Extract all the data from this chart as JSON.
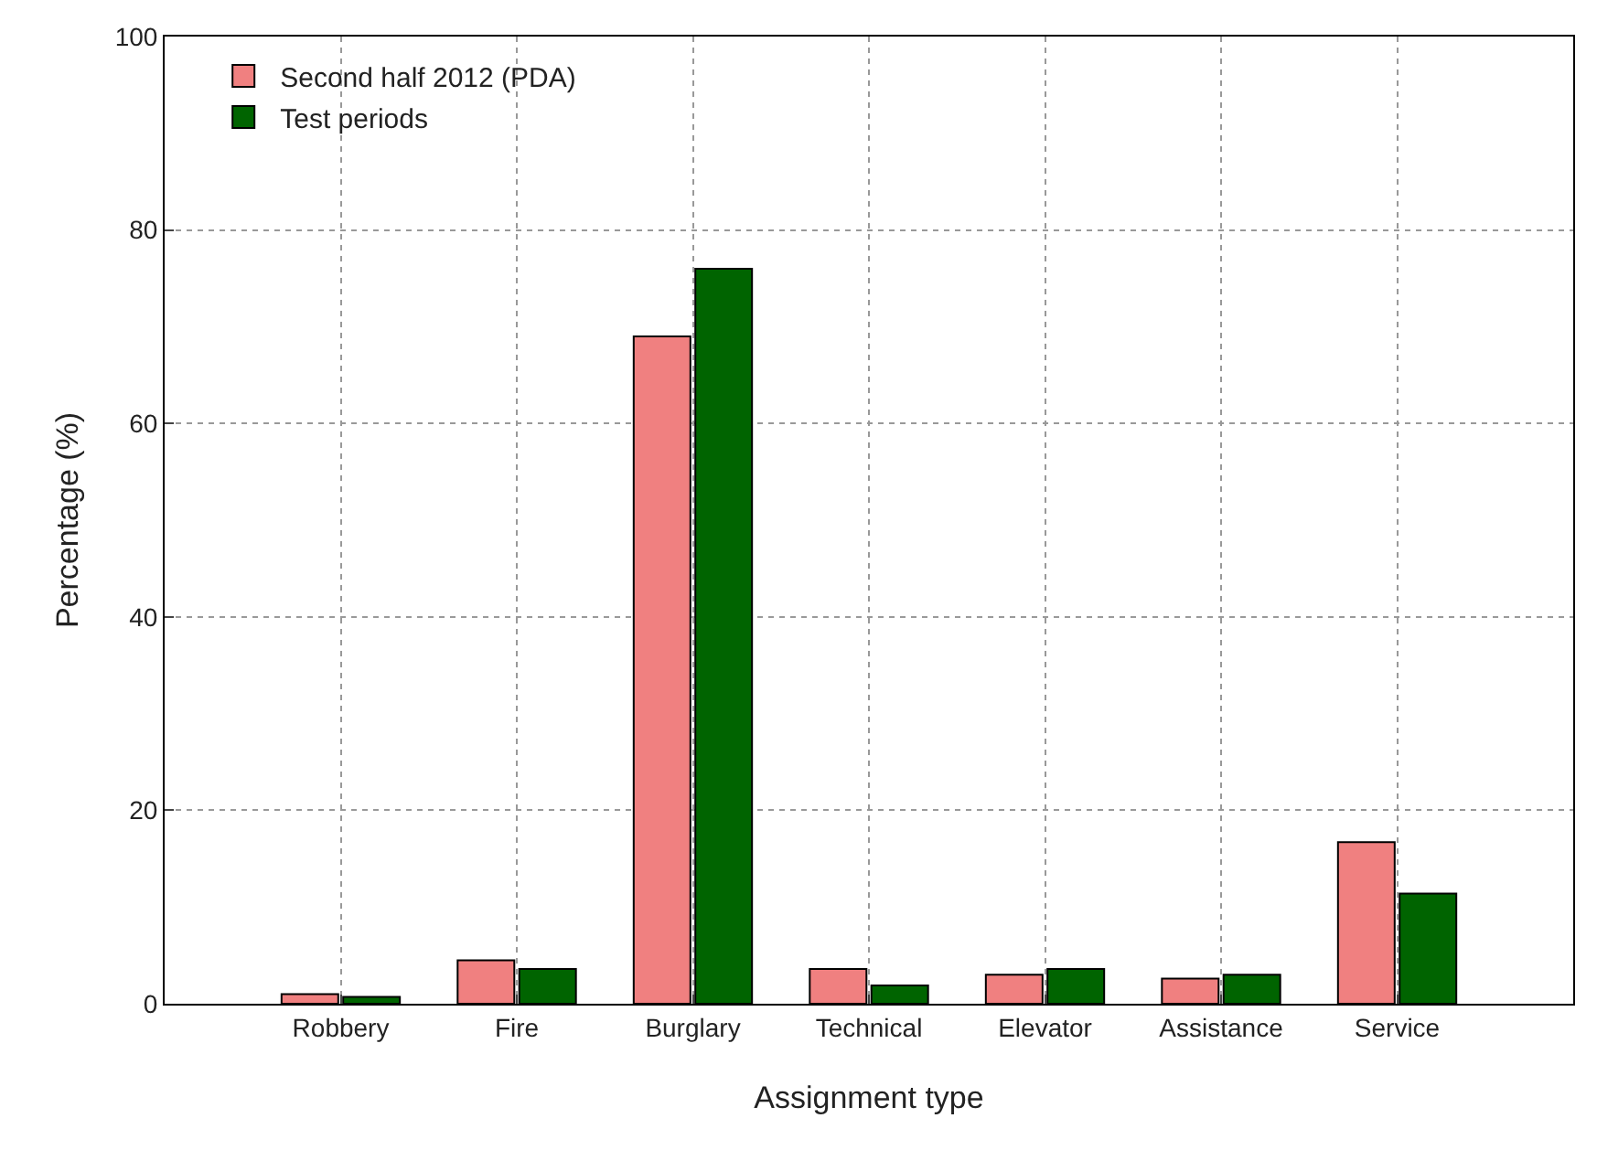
{
  "chart_data": {
    "type": "bar",
    "xlabel": "Assignment type",
    "ylabel": "Percentage (%)",
    "categories": [
      "Robbery",
      "Fire",
      "Burglary",
      "Technical",
      "Elevator",
      "Assistance",
      "Service"
    ],
    "series": [
      {
        "name": "Second half 2012 (PDA)",
        "color": "#f08080",
        "values": [
          1.0,
          4.5,
          69,
          3.6,
          3.0,
          2.6,
          16.7
        ]
      },
      {
        "name": "Test periods",
        "color": "#006400",
        "values": [
          0.7,
          3.6,
          76,
          1.9,
          3.6,
          3.0,
          11.4
        ]
      }
    ],
    "ylim": [
      0,
      100
    ],
    "yticks": [
      0,
      20,
      40,
      60,
      80,
      100
    ],
    "grid": true,
    "legend": "top left"
  }
}
